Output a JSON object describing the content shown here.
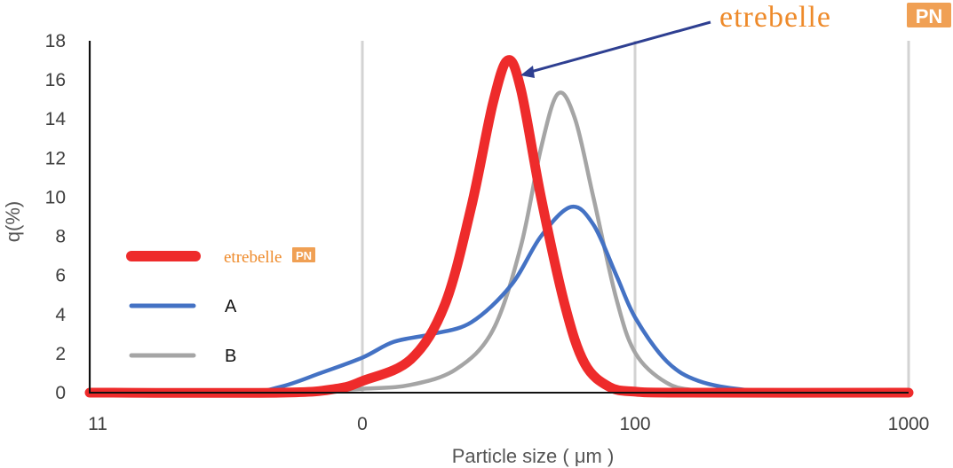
{
  "chart_data": {
    "type": "line",
    "xlabel": "Particle size ( μm )",
    "ylabel": "q(%)",
    "x_ticks": [
      "11",
      "0",
      "100",
      "1000"
    ],
    "y_ticks": [
      "0",
      "2",
      "4",
      "6",
      "8",
      "10",
      "12",
      "14",
      "16",
      "18"
    ],
    "ylim": [
      0,
      18
    ],
    "x_scale": "log",
    "grid": "vertical",
    "legend_position": "left",
    "annotation": {
      "text": "etrebelle",
      "badge": "PN"
    },
    "series": [
      {
        "name": "etrebelle PN",
        "color": "#ee2b2b",
        "points": [
          [
            1,
            0
          ],
          [
            5,
            0
          ],
          [
            8,
            0.2
          ],
          [
            10,
            0.6
          ],
          [
            15,
            1.7
          ],
          [
            20,
            4.5
          ],
          [
            25,
            9.5
          ],
          [
            30,
            14.8
          ],
          [
            34,
            17.0
          ],
          [
            38,
            15.5
          ],
          [
            45,
            10.0
          ],
          [
            55,
            4.5
          ],
          [
            65,
            1.5
          ],
          [
            80,
            0.3
          ],
          [
            100,
            0.05
          ],
          [
            150,
            0
          ],
          [
            1000,
            0
          ]
        ]
      },
      {
        "name": "A",
        "color": "#4472c4",
        "points": [
          [
            1,
            0
          ],
          [
            3.5,
            0
          ],
          [
            5,
            0.3
          ],
          [
            7,
            1.0
          ],
          [
            10,
            1.8
          ],
          [
            13,
            2.6
          ],
          [
            18,
            3.0
          ],
          [
            25,
            3.6
          ],
          [
            35,
            5.5
          ],
          [
            45,
            8.0
          ],
          [
            58,
            9.5
          ],
          [
            70,
            8.6
          ],
          [
            85,
            6.0
          ],
          [
            100,
            3.8
          ],
          [
            130,
            1.6
          ],
          [
            170,
            0.6
          ],
          [
            250,
            0.15
          ],
          [
            400,
            0
          ],
          [
            1000,
            0
          ]
        ]
      },
      {
        "name": "B",
        "color": "#a5a5a5",
        "points": [
          [
            1,
            0
          ],
          [
            5,
            0
          ],
          [
            10,
            0.2
          ],
          [
            15,
            0.4
          ],
          [
            22,
            1.2
          ],
          [
            30,
            3.2
          ],
          [
            38,
            7.5
          ],
          [
            45,
            12.5
          ],
          [
            52,
            15.3
          ],
          [
            60,
            14.0
          ],
          [
            70,
            10.0
          ],
          [
            85,
            4.8
          ],
          [
            100,
            2.0
          ],
          [
            130,
            0.5
          ],
          [
            170,
            0.1
          ],
          [
            250,
            0
          ],
          [
            1000,
            0
          ]
        ]
      }
    ]
  },
  "legend": [
    {
      "label": "etrebelle",
      "badge": "PN",
      "color": "#ee2b2b"
    },
    {
      "label": "A",
      "color": "#4472c4"
    },
    {
      "label": "B",
      "color": "#a5a5a5"
    }
  ]
}
